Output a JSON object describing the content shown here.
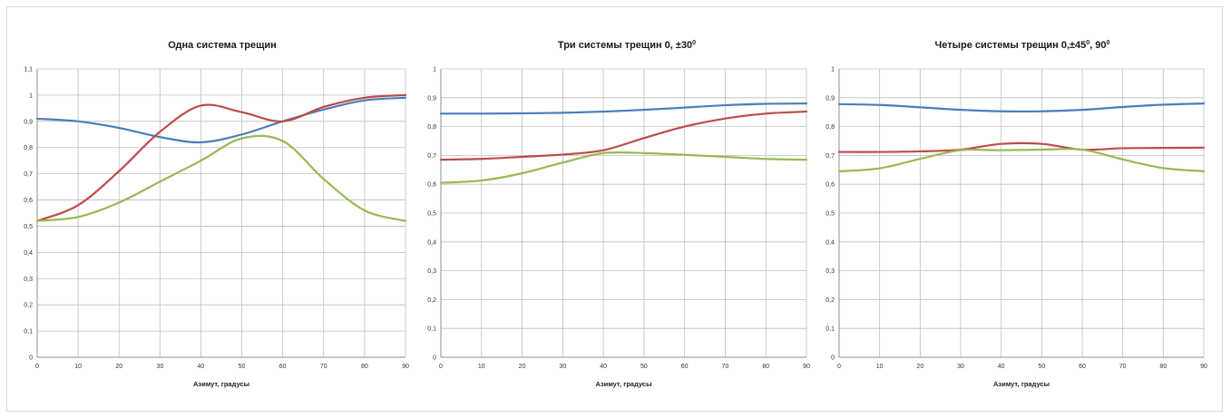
{
  "chart_data": [
    {
      "type": "line",
      "title": "Одна система трещин",
      "title_sup": "",
      "title_tail": "",
      "xlabel": "Азимут, градусы",
      "ylabel": "",
      "xlim": [
        0,
        90
      ],
      "ylim": [
        0,
        1.1
      ],
      "x_ticks": [
        "0",
        "10",
        "20",
        "30",
        "40",
        "50",
        "60",
        "70",
        "80",
        "90"
      ],
      "y_ticks": [
        "0",
        "0,1",
        "0,2",
        "0,3",
        "0,4",
        "0,5",
        "0,6",
        "0,7",
        "0,8",
        "0,9",
        "1",
        "1,1"
      ],
      "grid": true,
      "x": [
        0,
        10,
        20,
        30,
        40,
        50,
        60,
        70,
        80,
        90
      ],
      "series": [
        {
          "color": "#4a7ebb",
          "values": [
            0.91,
            0.9,
            0.875,
            0.84,
            0.82,
            0.85,
            0.9,
            0.945,
            0.98,
            0.99
          ]
        },
        {
          "color": "#be4b48",
          "values": [
            0.52,
            0.58,
            0.71,
            0.86,
            0.96,
            0.935,
            0.9,
            0.955,
            0.99,
            1.0
          ]
        },
        {
          "color": "#98b954",
          "values": [
            0.52,
            0.535,
            0.59,
            0.67,
            0.75,
            0.835,
            0.825,
            0.68,
            0.56,
            0.52
          ]
        }
      ]
    },
    {
      "type": "line",
      "title": "Три системы трещин 0, ±30",
      "title_sup": "0",
      "title_tail": "",
      "xlabel": "Азимут, градусы",
      "ylabel": "",
      "xlim": [
        0,
        90
      ],
      "ylim": [
        0,
        1
      ],
      "x_ticks": [
        "0",
        "10",
        "20",
        "30",
        "40",
        "50",
        "60",
        "70",
        "80",
        "90"
      ],
      "y_ticks": [
        "0",
        "0,1",
        "0,2",
        "0,3",
        "0,4",
        "0,5",
        "0,6",
        "0,7",
        "0,8",
        "0,9",
        "1"
      ],
      "grid": true,
      "x": [
        0,
        10,
        20,
        30,
        40,
        50,
        60,
        70,
        80,
        90
      ],
      "series": [
        {
          "color": "#4a7ebb",
          "values": [
            0.845,
            0.845,
            0.846,
            0.848,
            0.852,
            0.858,
            0.866,
            0.874,
            0.879,
            0.88
          ]
        },
        {
          "color": "#be4b48",
          "values": [
            0.685,
            0.688,
            0.695,
            0.703,
            0.718,
            0.76,
            0.8,
            0.828,
            0.845,
            0.852
          ]
        },
        {
          "color": "#98b954",
          "values": [
            0.605,
            0.613,
            0.638,
            0.675,
            0.708,
            0.708,
            0.702,
            0.695,
            0.688,
            0.685
          ]
        }
      ]
    },
    {
      "type": "line",
      "title": "Четыре системы трещин 0,±45",
      "title_sup": "0",
      "title_tail": ", 90",
      "title_sup2": "0",
      "xlabel": "Азимут, градусы",
      "ylabel": "",
      "xlim": [
        0,
        90
      ],
      "ylim": [
        0,
        1
      ],
      "x_ticks": [
        "0",
        "10",
        "20",
        "30",
        "40",
        "50",
        "60",
        "70",
        "80",
        "90"
      ],
      "y_ticks": [
        "0",
        "0,1",
        "0,2",
        "0,3",
        "0,4",
        "0,5",
        "0,6",
        "0,7",
        "0,8",
        "0,9",
        "1"
      ],
      "grid": true,
      "x": [
        0,
        10,
        20,
        30,
        40,
        50,
        60,
        70,
        80,
        90
      ],
      "series": [
        {
          "color": "#4a7ebb",
          "values": [
            0.878,
            0.875,
            0.867,
            0.858,
            0.853,
            0.853,
            0.858,
            0.868,
            0.876,
            0.88
          ]
        },
        {
          "color": "#be4b48",
          "values": [
            0.712,
            0.712,
            0.714,
            0.72,
            0.74,
            0.74,
            0.72,
            0.725,
            0.726,
            0.727
          ]
        },
        {
          "color": "#98b954",
          "values": [
            0.645,
            0.655,
            0.688,
            0.718,
            0.718,
            0.72,
            0.72,
            0.686,
            0.656,
            0.645
          ]
        }
      ]
    }
  ]
}
